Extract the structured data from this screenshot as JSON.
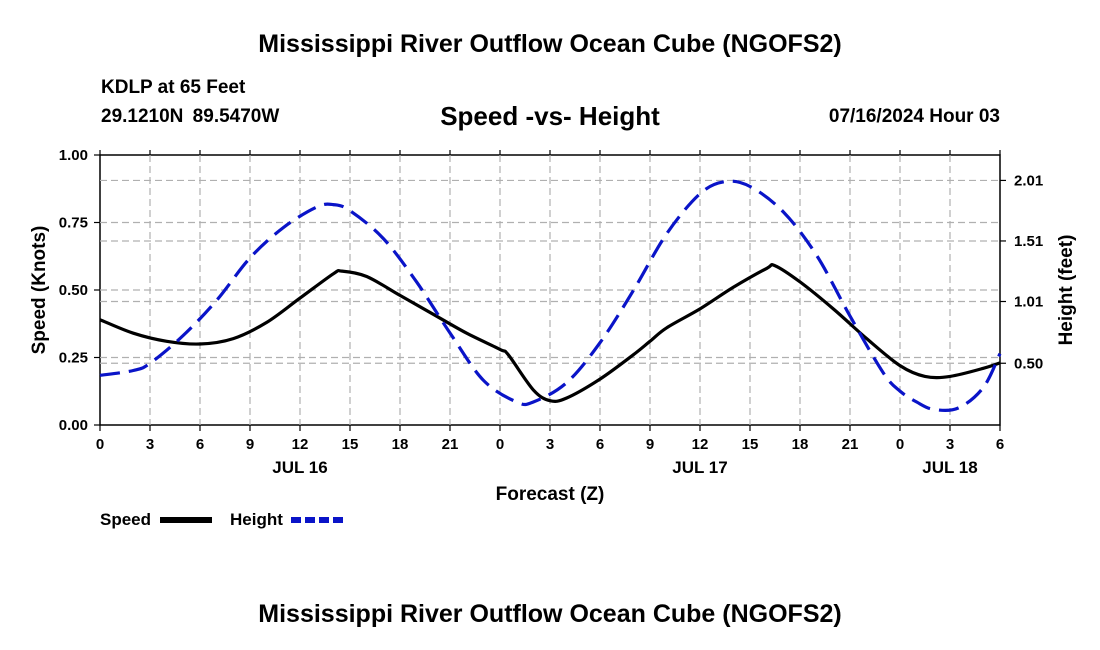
{
  "header": {
    "main_title": "Mississippi River Outflow Ocean Cube (NGOFS2)",
    "station": "KDLP at 65 Feet",
    "coords": "29.1210N  89.5470W",
    "subtitle": "Speed -vs- Height",
    "datetime": "07/16/2024 Hour 03"
  },
  "footer": {
    "title": "Mississippi River Outflow Ocean Cube (NGOFS2)"
  },
  "colors": {
    "speed": "#000000",
    "height": "#0a14c8",
    "grid": "#b0b0b0"
  },
  "chart_data": {
    "type": "line",
    "title": "Speed -vs- Height",
    "xlabel": "Forecast (Z)",
    "ylabel": "Speed (Knots)",
    "ylabel_right": "Height (feet)",
    "x_range_hours": [
      0,
      54
    ],
    "x_ticks": [
      {
        "h": 0,
        "label": "0"
      },
      {
        "h": 3,
        "label": "3"
      },
      {
        "h": 6,
        "label": "6"
      },
      {
        "h": 9,
        "label": "9"
      },
      {
        "h": 12,
        "label": "12"
      },
      {
        "h": 15,
        "label": "15"
      },
      {
        "h": 18,
        "label": "18"
      },
      {
        "h": 21,
        "label": "21"
      },
      {
        "h": 24,
        "label": "0"
      },
      {
        "h": 27,
        "label": "3"
      },
      {
        "h": 30,
        "label": "6"
      },
      {
        "h": 33,
        "label": "9"
      },
      {
        "h": 36,
        "label": "12"
      },
      {
        "h": 39,
        "label": "15"
      },
      {
        "h": 42,
        "label": "18"
      },
      {
        "h": 45,
        "label": "21"
      },
      {
        "h": 48,
        "label": "0"
      },
      {
        "h": 51,
        "label": "3"
      },
      {
        "h": 54,
        "label": "6"
      }
    ],
    "date_labels": [
      {
        "h": 12,
        "label": "JUL 16"
      },
      {
        "h": 36,
        "label": "JUL 17"
      },
      {
        "h": 51,
        "label": "JUL 18"
      }
    ],
    "y_left": {
      "range": [
        0,
        1.0
      ],
      "ticks": [
        0.0,
        0.25,
        0.5,
        0.75,
        1.0
      ],
      "labels": [
        "0.00",
        "0.25",
        "0.50",
        "0.75",
        "1.00"
      ]
    },
    "y_right": {
      "range": [
        -0.01,
        2.22
      ],
      "ticks": [
        0.5,
        1.01,
        1.51,
        2.01
      ],
      "labels": [
        "0.50",
        "1.01",
        "1.51",
        "2.01"
      ]
    },
    "series": [
      {
        "name": "Speed",
        "axis": "left",
        "style": "solid",
        "points": [
          [
            0,
            0.39
          ],
          [
            2,
            0.34
          ],
          [
            4,
            0.31
          ],
          [
            6,
            0.3
          ],
          [
            8,
            0.32
          ],
          [
            10,
            0.38
          ],
          [
            12,
            0.47
          ],
          [
            14,
            0.56
          ],
          [
            14.5,
            0.57
          ],
          [
            16,
            0.55
          ],
          [
            18,
            0.48
          ],
          [
            20,
            0.41
          ],
          [
            22,
            0.34
          ],
          [
            24,
            0.28
          ],
          [
            24.5,
            0.26
          ],
          [
            26,
            0.13
          ],
          [
            27,
            0.09
          ],
          [
            28,
            0.1
          ],
          [
            30,
            0.17
          ],
          [
            32,
            0.26
          ],
          [
            33,
            0.31
          ],
          [
            34,
            0.36
          ],
          [
            36,
            0.43
          ],
          [
            38,
            0.51
          ],
          [
            40,
            0.58
          ],
          [
            40.5,
            0.59
          ],
          [
            42,
            0.53
          ],
          [
            44,
            0.43
          ],
          [
            46,
            0.32
          ],
          [
            48,
            0.22
          ],
          [
            49.5,
            0.18
          ],
          [
            51,
            0.18
          ],
          [
            53,
            0.21
          ],
          [
            54,
            0.23
          ]
        ]
      },
      {
        "name": "Height",
        "axis": "right",
        "style": "dashed",
        "points": [
          [
            0,
            0.4
          ],
          [
            2,
            0.44
          ],
          [
            3,
            0.5
          ],
          [
            5,
            0.73
          ],
          [
            7,
            1.02
          ],
          [
            9,
            1.37
          ],
          [
            11,
            1.62
          ],
          [
            13,
            1.79
          ],
          [
            14,
            1.81
          ],
          [
            15,
            1.76
          ],
          [
            17,
            1.53
          ],
          [
            19,
            1.17
          ],
          [
            21,
            0.75
          ],
          [
            23,
            0.36
          ],
          [
            25,
            0.18
          ],
          [
            26,
            0.18
          ],
          [
            28,
            0.34
          ],
          [
            30,
            0.67
          ],
          [
            32,
            1.1
          ],
          [
            34,
            1.57
          ],
          [
            36,
            1.9
          ],
          [
            37.5,
            2.0
          ],
          [
            39,
            1.96
          ],
          [
            41,
            1.75
          ],
          [
            43,
            1.39
          ],
          [
            45,
            0.89
          ],
          [
            47,
            0.42
          ],
          [
            48,
            0.27
          ],
          [
            49,
            0.18
          ],
          [
            50,
            0.12
          ],
          [
            51.5,
            0.13
          ],
          [
            53,
            0.3
          ],
          [
            54,
            0.58
          ]
        ]
      }
    ],
    "legend": [
      {
        "label": "Speed",
        "style": "solid"
      },
      {
        "label": "Height",
        "style": "dashed"
      }
    ],
    "legend_position": "bottom-left",
    "grid": true
  }
}
